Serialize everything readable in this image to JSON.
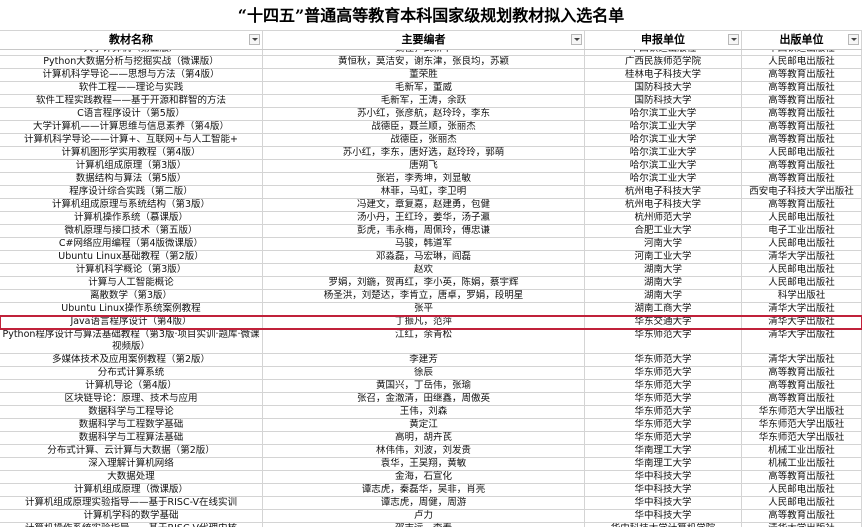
{
  "header": {
    "title": "“十四五”普通高等教育本科国家级规划教材拟入选名单"
  },
  "table": {
    "columns": [
      "教材名称",
      "主要编者",
      "申报单位",
      "出版单位"
    ],
    "rows": [
      [
        "大学计算机（第五版）",
        "魏佳，武新华",
        "中国铁道出版社",
        "中国铁道出版社"
      ],
      [
        "Python大数据分析与挖掘实战（微课版）",
        "黄恒秋，莫洁安，谢东津，张良均，苏颖",
        "广西民族师范学院",
        "人民邮电出版社"
      ],
      [
        "计算机科学导论——思想与方法（第4版）",
        "董荣胜",
        "桂林电子科技大学",
        "高等教育出版社"
      ],
      [
        "软件工程——理论与实践",
        "毛新军，董威",
        "国防科技大学",
        "高等教育出版社"
      ],
      [
        "软件工程实践教程——基于开源和群智的方法",
        "毛新军，王涛，余跃",
        "国防科技大学",
        "高等教育出版社"
      ],
      [
        "C语言程序设计（第5版）",
        "苏小红，张彦航，赵玲玲，李东",
        "哈尔滨工业大学",
        "高等教育出版社"
      ],
      [
        "大学计算机——计算思维与信息素养（第4版）",
        "战德臣，聂兰顺，张丽杰",
        "哈尔滨工业大学",
        "高等教育出版社"
      ],
      [
        "计算机科学导论——计算+、互联网+与人工智能+",
        "战德臣，张丽杰",
        "哈尔滨工业大学",
        "高等教育出版社"
      ],
      [
        "计算机图形学实用教程（第4版）",
        "苏小红，李东，唐好选，赵玲玲，郭萌",
        "哈尔滨工业大学",
        "人民邮电出版社"
      ],
      [
        "计算机组成原理（第3版）",
        "唐朔飞",
        "哈尔滨工业大学",
        "高等教育出版社"
      ],
      [
        "数据结构与算法（第5版）",
        "张岩，李秀坤，刘显敏",
        "哈尔滨工业大学",
        "高等教育出版社"
      ],
      [
        "程序设计综合实践（第二版）",
        "林菲，马虹，李卫明",
        "杭州电子科技大学",
        "西安电子科技大学出版社"
      ],
      [
        "计算机组成原理与系统结构（第3版）",
        "冯建文，章复嘉，赵建勇，包健",
        "杭州电子科技大学",
        "高等教育出版社"
      ],
      [
        "计算机操作系统（慕课版）",
        "汤小丹，王红玲，姜华，汤子瀛",
        "杭州师范大学",
        "人民邮电出版社"
      ],
      [
        "微机原理与接口技术（第五版）",
        "彭虎，韦永梅，周佩玲，傅忠谦",
        "合肥工业大学",
        "电子工业出版社"
      ],
      [
        "C#网络应用编程（第4版微课版）",
        "马骏，韩道军",
        "河南大学",
        "人民邮电出版社"
      ],
      [
        "Ubuntu Linux基础教程（第2版）",
        "邓淼磊，马宏琳，阎磊",
        "河南工业大学",
        "清华大学出版社"
      ],
      [
        "计算机科学概论（第3版）",
        "赵欢",
        "湖南大学",
        "人民邮电出版社"
      ],
      [
        "计算与人工智能概论",
        "罗娟，刘鍦，贺再红，李小英，陈娟，蔡宇辉",
        "湖南大学",
        "人民邮电出版社"
      ],
      [
        "离散数学（第3版）",
        "杨圣洪，刘楚达，李肯立，唐卓，罗娟，段明星",
        "湖南大学",
        "科学出版社"
      ],
      [
        "Ubuntu Linux操作系统案例教程",
        "张平",
        "湖南工商大学",
        "清华大学出版社"
      ],
      [
        "Java语言程序设计（第4版）",
        "丁振凡，范萍",
        "华东交通大学",
        "清华大学出版社"
      ],
      [
        "Python程序设计与算法基础教程（第3版·项目实训·题库·微课视频版）",
        "江红，余青松",
        "华东师范大学",
        "清华大学出版社"
      ],
      [
        "多媒体技术及应用案例教程（第2版）",
        "李建芳",
        "华东师范大学",
        "清华大学出版社"
      ],
      [
        "分布式计算系统",
        "徐辰",
        "华东师范大学",
        "高等教育出版社"
      ],
      [
        "计算机导论（第4版）",
        "黄国兴，丁岳伟，张瑜",
        "华东师范大学",
        "高等教育出版社"
      ],
      [
        "区块链导论：原理、技术与应用",
        "张召，金澈清，田继鑫，周傲英",
        "华东师范大学",
        "高等教育出版社"
      ],
      [
        "数据科学与工程导论",
        "王伟，刘森",
        "华东师范大学",
        "华东师范大学出版社"
      ],
      [
        "数据科学与工程数学基础",
        "黄定江",
        "华东师范大学",
        "华东师范大学出版社"
      ],
      [
        "数据科学与工程算法基础",
        "高明，胡卉芪",
        "华东师范大学",
        "华东师范大学出版社"
      ],
      [
        "分布式计算、云计算与大数据（第2版）",
        "林伟伟，刘波，刘发贵",
        "华南理工大学",
        "机械工业出版社"
      ],
      [
        "深入理解计算机网络",
        "袁华，王昊翔，黄敏",
        "华南理工大学",
        "机械工业出版社"
      ],
      [
        "大数据处理",
        "金海，石宣化",
        "华中科技大学",
        "高等教育出版社"
      ],
      [
        "计算机组成原理（微课版）",
        "谭志虎，秦磊华，吴非，肖亮",
        "华中科技大学",
        "人民邮电出版社"
      ],
      [
        "计算机组成原理实验指导——基于RISC-V在线实训",
        "谭志虎，周健，周游",
        "华中科技大学",
        "人民邮电出版社"
      ],
      [
        "计算机学科的数学基础",
        "卢力",
        "华中科技大学",
        "高等教育出版社"
      ],
      [
        "计算机操作系统实验指导——基于RISC-V代理内核",
        "邵志远，李春",
        "华中科技大学计算机学院",
        "清华大学出版社"
      ]
    ]
  }
}
